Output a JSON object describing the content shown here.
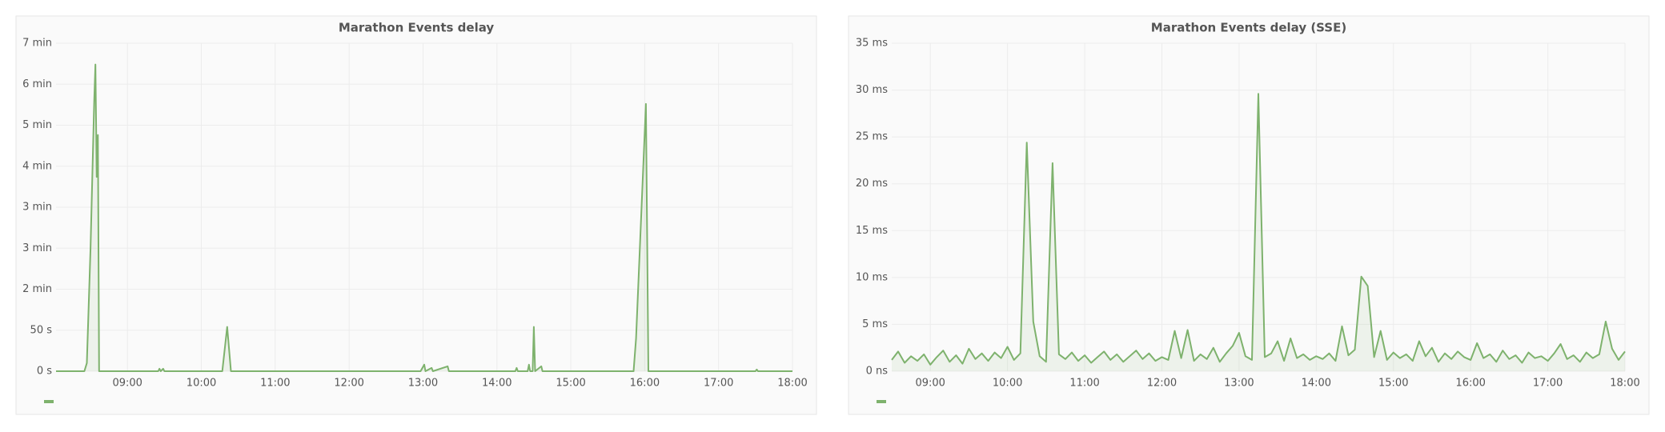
{
  "chart_data": [
    {
      "type": "line",
      "title": "Marathon Events delay",
      "color": "#7eb26d",
      "fill": true,
      "grid": true,
      "xlim": [
        "08:02",
        "18:00"
      ],
      "xticks": [
        "09:00",
        "10:00",
        "11:00",
        "12:00",
        "13:00",
        "14:00",
        "15:00",
        "16:00",
        "17:00",
        "18:00"
      ],
      "ylim": [
        0,
        400
      ],
      "yticks": [
        {
          "value": 0,
          "label": "0 s"
        },
        {
          "value": 50,
          "label": "50 s"
        },
        {
          "value": 100,
          "label": "2 min"
        },
        {
          "value": 150,
          "label": "3 min"
        },
        {
          "value": 200,
          "label": "3 min"
        },
        {
          "value": 250,
          "label": "4 min"
        },
        {
          "value": 300,
          "label": "5 min"
        },
        {
          "value": 350,
          "label": "6 min"
        },
        {
          "value": 400,
          "label": "7 min"
        }
      ],
      "x": [
        "08:02",
        "08:25",
        "08:27",
        "08:30",
        "08:33",
        "08:34",
        "08:35",
        "08:36",
        "08:37",
        "09:25",
        "09:26",
        "09:27",
        "09:29",
        "09:30",
        "10:17",
        "10:21",
        "10:24",
        "12:58",
        "13:01",
        "13:02",
        "13:07",
        "13:08",
        "13:20",
        "13:21",
        "14:15",
        "14:16",
        "14:17",
        "14:25",
        "14:26",
        "14:27",
        "14:29",
        "14:30",
        "14:31",
        "14:36",
        "14:37",
        "15:51",
        "15:53",
        "16:01",
        "16:03",
        "17:30",
        "17:31",
        "17:32",
        "18:00"
      ],
      "series": [
        {
          "color": "#7eb26d",
          "values": [
            0,
            0,
            10,
            150,
            330,
            374,
            237,
            288,
            0,
            0,
            3,
            0,
            3,
            0,
            0,
            54,
            0,
            0,
            8,
            0,
            4,
            0,
            6,
            0,
            0,
            4,
            0,
            0,
            8,
            0,
            0,
            54,
            0,
            6,
            0,
            0,
            40,
            326,
            0,
            0,
            2,
            0,
            0
          ]
        }
      ]
    },
    {
      "type": "line",
      "title": "Marathon Events delay (SSE)",
      "color": "#7eb26d",
      "fill": true,
      "grid": true,
      "xlim": [
        "08:30",
        "18:00"
      ],
      "xticks": [
        "09:00",
        "10:00",
        "11:00",
        "12:00",
        "13:00",
        "14:00",
        "15:00",
        "16:00",
        "17:00",
        "18:00"
      ],
      "ylim": [
        0,
        35
      ],
      "yticks": [
        {
          "value": 0,
          "label": "0 ns"
        },
        {
          "value": 5,
          "label": "5 ms"
        },
        {
          "value": 10,
          "label": "10 ms"
        },
        {
          "value": 15,
          "label": "15 ms"
        },
        {
          "value": 20,
          "label": "20 ms"
        },
        {
          "value": 25,
          "label": "25 ms"
        },
        {
          "value": 30,
          "label": "30 ms"
        },
        {
          "value": 35,
          "label": "35 ms"
        }
      ],
      "x": [
        "08:30",
        "08:35",
        "08:40",
        "08:45",
        "08:50",
        "08:55",
        "09:00",
        "09:05",
        "09:10",
        "09:15",
        "09:20",
        "09:25",
        "09:30",
        "09:35",
        "09:40",
        "09:45",
        "09:50",
        "09:55",
        "10:00",
        "10:05",
        "10:10",
        "10:15",
        "10:20",
        "10:25",
        "10:30",
        "10:35",
        "10:40",
        "10:45",
        "10:50",
        "10:55",
        "11:00",
        "11:05",
        "11:10",
        "11:15",
        "11:20",
        "11:25",
        "11:30",
        "11:35",
        "11:40",
        "11:45",
        "11:50",
        "11:55",
        "12:00",
        "12:05",
        "12:10",
        "12:15",
        "12:20",
        "12:25",
        "12:30",
        "12:35",
        "12:40",
        "12:45",
        "12:50",
        "12:55",
        "13:00",
        "13:05",
        "13:10",
        "13:15",
        "13:20",
        "13:25",
        "13:30",
        "13:35",
        "13:40",
        "13:45",
        "13:50",
        "13:55",
        "14:00",
        "14:05",
        "14:10",
        "14:15",
        "14:20",
        "14:25",
        "14:30",
        "14:35",
        "14:40",
        "14:45",
        "14:50",
        "14:55",
        "15:00",
        "15:05",
        "15:10",
        "15:15",
        "15:20",
        "15:25",
        "15:30",
        "15:35",
        "15:40",
        "15:45",
        "15:50",
        "15:55",
        "16:00",
        "16:05",
        "16:10",
        "16:15",
        "16:20",
        "16:25",
        "16:30",
        "16:35",
        "16:40",
        "16:45",
        "16:50",
        "16:55",
        "17:00",
        "17:05",
        "17:10",
        "17:15",
        "17:20",
        "17:25",
        "17:30",
        "17:35",
        "17:40",
        "17:45",
        "17:50",
        "17:55",
        "18:00"
      ],
      "series": [
        {
          "color": "#7eb26d",
          "values": [
            1.2,
            2.1,
            0.9,
            1.6,
            1.1,
            1.8,
            0.7,
            1.5,
            2.2,
            1.0,
            1.7,
            0.8,
            2.4,
            1.3,
            1.9,
            1.1,
            2.0,
            1.4,
            2.6,
            1.2,
            1.9,
            24.4,
            5.3,
            1.6,
            1.0,
            22.2,
            1.8,
            1.3,
            2.0,
            1.1,
            1.7,
            0.9,
            1.5,
            2.1,
            1.2,
            1.8,
            1.0,
            1.6,
            2.2,
            1.3,
            1.9,
            1.1,
            1.5,
            1.2,
            4.3,
            1.4,
            4.4,
            1.1,
            1.8,
            1.3,
            2.5,
            1.0,
            1.9,
            2.7,
            4.1,
            1.6,
            1.2,
            29.6,
            1.5,
            1.9,
            3.2,
            1.1,
            3.5,
            1.4,
            1.8,
            1.2,
            1.6,
            1.3,
            1.9,
            1.1,
            4.8,
            1.7,
            2.3,
            10.1,
            9.1,
            1.5,
            4.3,
            1.2,
            2.0,
            1.4,
            1.8,
            1.1,
            3.2,
            1.6,
            2.5,
            1.0,
            1.9,
            1.3,
            2.1,
            1.5,
            1.2,
            3.0,
            1.4,
            1.8,
            1.0,
            2.2,
            1.3,
            1.7,
            0.9,
            2.0,
            1.4,
            1.6,
            1.1,
            1.9,
            2.9,
            1.3,
            1.7,
            1.0,
            2.0,
            1.4,
            1.8,
            5.3,
            2.4,
            1.2,
            2.1
          ]
        }
      ]
    }
  ]
}
